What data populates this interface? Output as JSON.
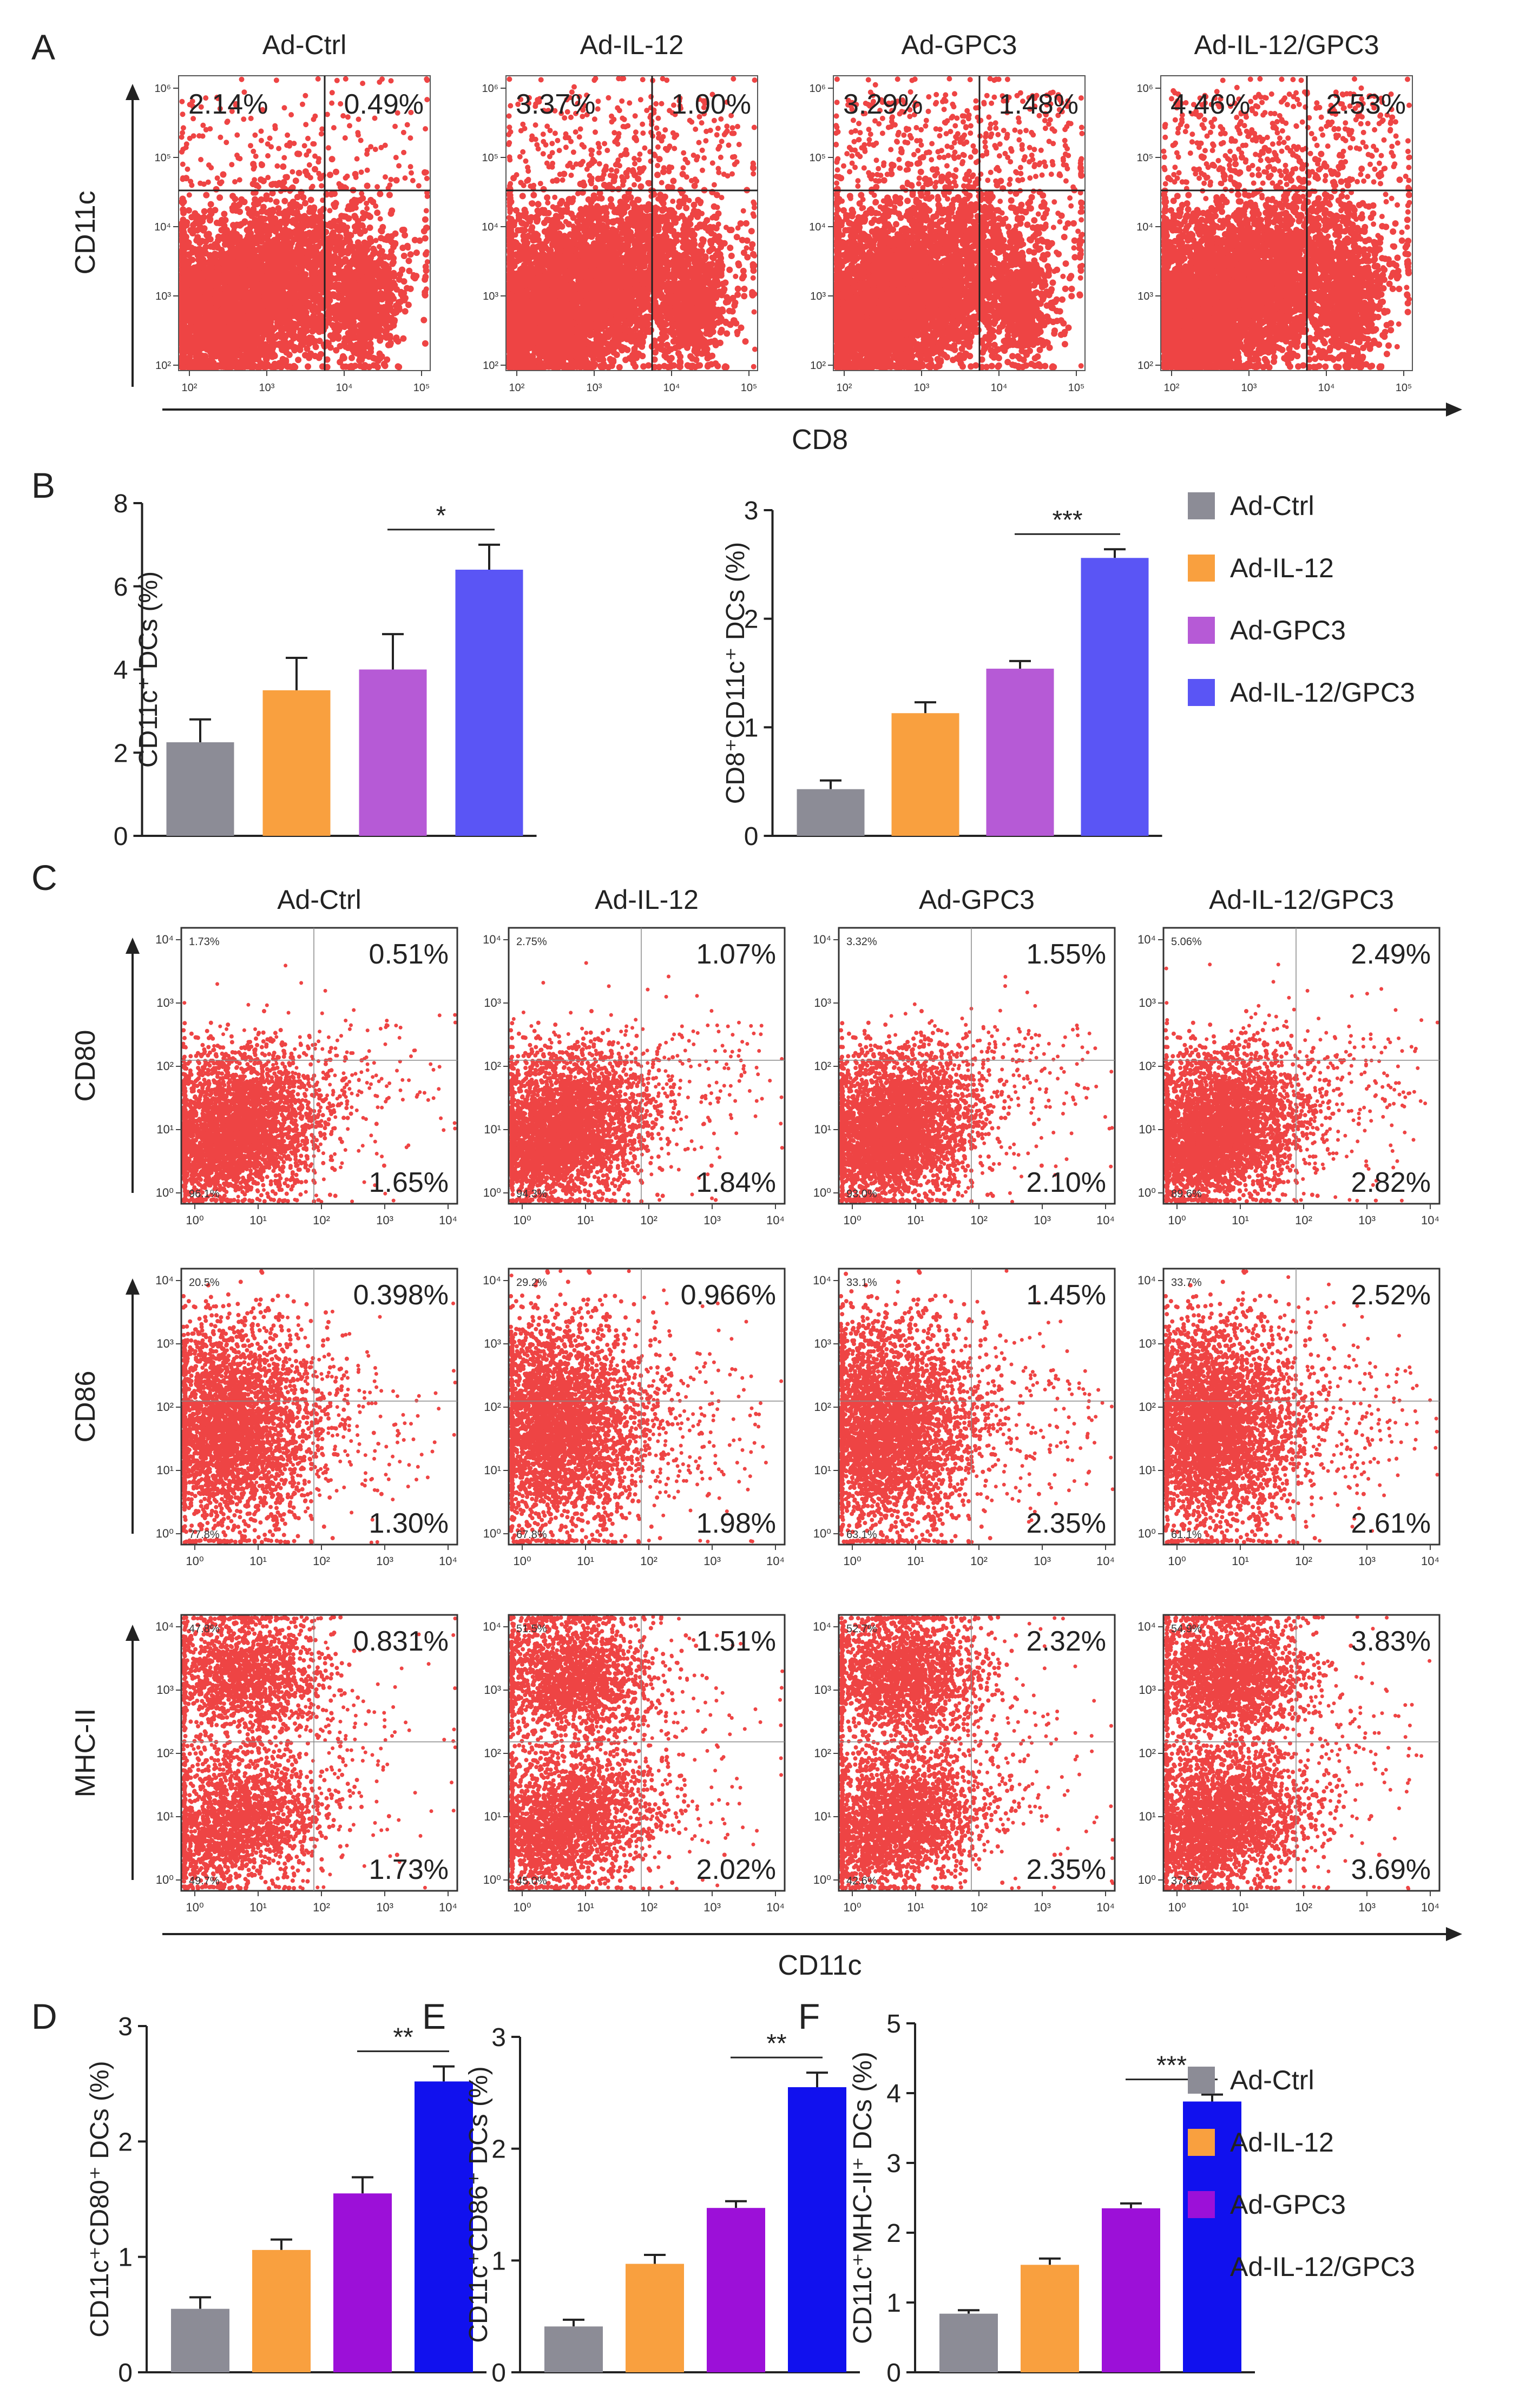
{
  "colors": {
    "ad_ctrl": "#8c8c96",
    "ad_il12": "#f9a03f",
    "ad_gpc3_b": "#b65ad6",
    "ad_combo_b": "#5a55f5",
    "ad_gpc3_df": "#9c10d8",
    "ad_combo_df": "#1111ee",
    "dots": "#ee4444",
    "axis": "#222222"
  },
  "panel_labels": [
    "A",
    "B",
    "C",
    "D",
    "E",
    "F"
  ],
  "groups": [
    "Ad-Ctrl",
    "Ad-IL-12",
    "Ad-GPC3",
    "Ad-IL-12/GPC3"
  ],
  "panel_a": {
    "y_title": "CD11c",
    "x_title": "CD8",
    "x_ticks": [
      "10²",
      "10³",
      "10⁴",
      "10⁵"
    ],
    "y_ticks": [
      "10²",
      "10³",
      "10⁴",
      "10⁵",
      "10⁶"
    ],
    "plots": [
      {
        "group": "Ad-Ctrl",
        "ul": "2.14%",
        "ur": "0.49%"
      },
      {
        "group": "Ad-IL-12",
        "ul": "3.37%",
        "ur": "1.00%"
      },
      {
        "group": "Ad-GPC3",
        "ul": "3.29%",
        "ur": "1.48%"
      },
      {
        "group": "Ad-IL-12/GPC3",
        "ul": "4.46%",
        "ur": "2.53%"
      }
    ]
  },
  "panel_c": {
    "x_title": "CD11c",
    "ticks": [
      "10⁰",
      "10¹",
      "10²",
      "10³",
      "10⁴"
    ],
    "rows": [
      {
        "marker": "CD80",
        "plots": [
          {
            "ul": "1.73%",
            "ur": "0.51%",
            "ll": "96.1%",
            "lr": "1.65%"
          },
          {
            "ul": "2.75%",
            "ur": "1.07%",
            "ll": "94.3%",
            "lr": "1.84%"
          },
          {
            "ul": "3.32%",
            "ur": "1.55%",
            "ll": "93.0%",
            "lr": "2.10%"
          },
          {
            "ul": "5.06%",
            "ur": "2.49%",
            "ll": "89.6%",
            "lr": "2.82%"
          }
        ]
      },
      {
        "marker": "CD86",
        "plots": [
          {
            "ul": "20.5%",
            "ur": "0.398%",
            "ll": "77.8%",
            "lr": "1.30%"
          },
          {
            "ul": "29.2%",
            "ur": "0.966%",
            "ll": "67.8%",
            "lr": "1.98%"
          },
          {
            "ul": "33.1%",
            "ur": "1.45%",
            "ll": "63.1%",
            "lr": "2.35%"
          },
          {
            "ul": "33.7%",
            "ur": "2.52%",
            "ll": "61.1%",
            "lr": "2.61%"
          }
        ]
      },
      {
        "marker": "MHC-II",
        "plots": [
          {
            "ul": "47.8%",
            "ur": "0.831%",
            "ll": "49.7%",
            "lr": "1.73%"
          },
          {
            "ul": "51.5%",
            "ur": "1.51%",
            "ll": "45.0%",
            "lr": "2.02%"
          },
          {
            "ul": "52.7%",
            "ur": "2.32%",
            "ll": "42.6%",
            "lr": "2.35%"
          },
          {
            "ul": "54.9%",
            "ur": "3.83%",
            "ll": "37.6%",
            "lr": "3.69%"
          }
        ]
      }
    ]
  },
  "chart_data": [
    {
      "id": "B1",
      "type": "bar",
      "categories": [
        "Ad-Ctrl",
        "Ad-IL-12",
        "Ad-GPC3",
        "Ad-IL-12/GPC3"
      ],
      "values": [
        2.25,
        3.5,
        4.0,
        6.4
      ],
      "errors": [
        0.55,
        0.78,
        0.85,
        0.6
      ],
      "ylabel": "CD11c⁺ DCs (%)",
      "ylim": [
        0,
        8
      ],
      "yticks": [
        0,
        2,
        4,
        6,
        8
      ],
      "ytick_labels": [
        "0",
        "2",
        "4",
        "6",
        "8"
      ],
      "significance": {
        "from": 2,
        "to": 3,
        "label": "*"
      }
    },
    {
      "id": "B2",
      "type": "bar",
      "categories": [
        "Ad-Ctrl",
        "Ad-IL-12",
        "Ad-GPC3",
        "Ad-IL-12/GPC3"
      ],
      "values": [
        0.43,
        1.13,
        1.54,
        2.56
      ],
      "errors": [
        0.08,
        0.1,
        0.07,
        0.08
      ],
      "ylabel": "CD8⁺CD11c⁺ DCs (%)",
      "ylim": [
        0,
        3
      ],
      "yticks": [
        0,
        1,
        2,
        3
      ],
      "ytick_labels": [
        "0",
        "1",
        "2",
        "3"
      ],
      "significance": {
        "from": 2,
        "to": 3,
        "label": "***"
      }
    },
    {
      "id": "D",
      "type": "bar",
      "categories": [
        "Ad-Ctrl",
        "Ad-IL-12",
        "Ad-GPC3",
        "Ad-IL-12/GPC3"
      ],
      "values": [
        0.55,
        1.06,
        1.55,
        2.52
      ],
      "errors": [
        0.1,
        0.09,
        0.14,
        0.13
      ],
      "ylabel": "CD11c⁺CD80⁺ DCs (%)",
      "ylim": [
        0,
        3
      ],
      "yticks": [
        0,
        1,
        2,
        3
      ],
      "ytick_labels": [
        "0",
        "1",
        "2",
        "3"
      ],
      "significance": {
        "from": 2,
        "to": 3,
        "label": "**"
      }
    },
    {
      "id": "E",
      "type": "bar",
      "categories": [
        "Ad-Ctrl",
        "Ad-IL-12",
        "Ad-GPC3",
        "Ad-IL-12/GPC3"
      ],
      "values": [
        0.41,
        0.97,
        1.47,
        2.55
      ],
      "errors": [
        0.06,
        0.08,
        0.06,
        0.13
      ],
      "ylabel": "CD11c⁺CD86⁺ DCs (%)",
      "ylim": [
        0,
        3
      ],
      "yticks": [
        0,
        1,
        2,
        3
      ],
      "ytick_labels": [
        "0",
        "1",
        "2",
        "3"
      ],
      "significance": {
        "from": 2,
        "to": 3,
        "label": "**"
      }
    },
    {
      "id": "F",
      "type": "bar",
      "categories": [
        "Ad-Ctrl",
        "Ad-IL-12",
        "Ad-GPC3",
        "Ad-IL-12/GPC3"
      ],
      "values": [
        0.84,
        1.54,
        2.35,
        3.88
      ],
      "errors": [
        0.05,
        0.09,
        0.07,
        0.1
      ],
      "ylabel": "CD11c⁺MHC-II⁺ DCs (%)",
      "ylim": [
        0,
        5
      ],
      "yticks": [
        0,
        1,
        2,
        3,
        4,
        5
      ],
      "ytick_labels": [
        "0",
        "1",
        "2",
        "3",
        "4",
        "5"
      ],
      "significance": {
        "from": 2,
        "to": 3,
        "label": "***"
      }
    }
  ]
}
